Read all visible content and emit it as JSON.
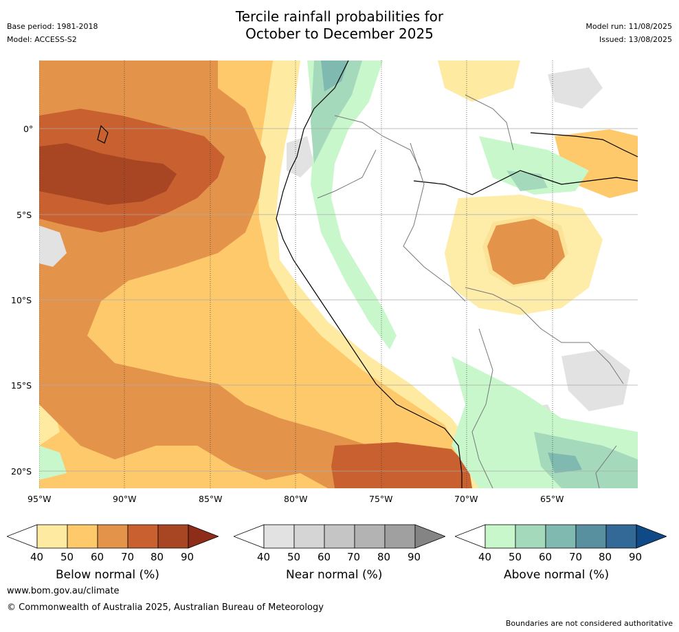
{
  "header": {
    "title_line1": "Tercile rainfall probabilities for",
    "title_line2": "October to December 2025",
    "base_period": "Base period: 1981-2018",
    "model": "Model: ACCESS-S2",
    "model_run": "Model run: 11/08/2025",
    "issued": "Issued: 13/08/2025"
  },
  "map": {
    "lat_labels": [
      "0°",
      "5°S",
      "10°S",
      "15°S",
      "20°S"
    ],
    "lon_labels": [
      "95°W",
      "90°W",
      "85°W",
      "80°W",
      "75°W",
      "70°W",
      "65°W"
    ]
  },
  "colorbars": [
    {
      "title": "Below normal (%)",
      "ticks": [
        "40",
        "50",
        "60",
        "70",
        "80",
        "90"
      ],
      "colors": [
        "#ffffff",
        "#feeaa0",
        "#fdc96b",
        "#e3944a",
        "#c8612f",
        "#a84623",
        "#8c2c19"
      ]
    },
    {
      "title": "Near normal (%)",
      "ticks": [
        "40",
        "50",
        "60",
        "70",
        "80",
        "90"
      ],
      "colors": [
        "#ffffff",
        "#e2e2e2",
        "#d5d5d5",
        "#c5c5c5",
        "#b3b3b3",
        "#a0a0a0",
        "#848484"
      ]
    },
    {
      "title": "Above normal (%)",
      "ticks": [
        "40",
        "50",
        "60",
        "70",
        "80",
        "90"
      ],
      "colors": [
        "#ffffff",
        "#c8f7cb",
        "#a5d9bc",
        "#7fb9b0",
        "#5990a0",
        "#326996",
        "#0f4a86"
      ]
    }
  ],
  "footer": {
    "website": "www.bom.gov.au/climate",
    "copyright": "© Commonwealth of Australia 2025, Australian Bureau of Meteorology",
    "disclaimer": "Boundaries are not considered authoritative"
  }
}
